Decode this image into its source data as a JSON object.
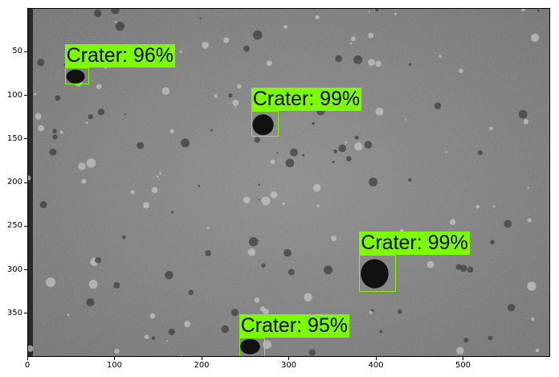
{
  "axes": {
    "x_ticks": [
      "0",
      "100",
      "200",
      "300",
      "400",
      "500"
    ],
    "y_ticks": [
      "50",
      "100",
      "150",
      "200",
      "250",
      "300",
      "350"
    ],
    "xlim": [
      0,
      600
    ],
    "ylim": [
      400,
      0
    ]
  },
  "detections": [
    {
      "label": "Crater: 96%",
      "x": 42,
      "y": 67,
      "w": 28,
      "h": 20
    },
    {
      "label": "Crater: 99%",
      "x": 256,
      "y": 117,
      "w": 32,
      "h": 30
    },
    {
      "label": "Crater: 99%",
      "x": 380,
      "y": 282,
      "w": 42,
      "h": 42
    },
    {
      "label": "Crater: 95%",
      "x": 242,
      "y": 377,
      "w": 30,
      "h": 22
    }
  ]
}
